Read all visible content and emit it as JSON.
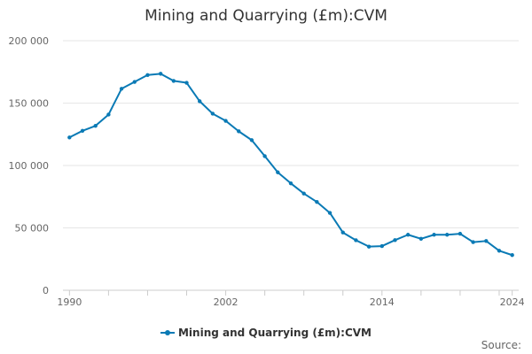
{
  "colors": {
    "line": "#0a7ab5",
    "grid": "#e6e6e6",
    "text": "#333333",
    "axis_text": "#666666"
  },
  "legend": {
    "label": "Mining and Quarrying (£m):CVM"
  },
  "source": {
    "label": "Source:"
  },
  "chart_data": {
    "type": "line",
    "title": "Mining and Quarrying (£m):CVM",
    "xlabel": "",
    "ylabel": "",
    "xlim": [
      1990,
      2024
    ],
    "ylim": [
      0,
      200000
    ],
    "yticks": [
      0,
      50000,
      100000,
      150000,
      200000
    ],
    "ytick_labels": [
      "0",
      "50 000",
      "100 000",
      "150 000",
      "200 000"
    ],
    "xtick_labels": [
      {
        "x": 1990,
        "label": "1990"
      },
      {
        "x": 2002,
        "label": "2002"
      },
      {
        "x": 2014,
        "label": "2014"
      },
      {
        "x": 2024,
        "label": "2024"
      }
    ],
    "grid": true,
    "legend_position": "bottom-center",
    "series": [
      {
        "name": "Mining and Quarrying (£m):CVM",
        "x": [
          1990,
          1991,
          1992,
          1993,
          1994,
          1995,
          1996,
          1997,
          1998,
          1999,
          2000,
          2001,
          2002,
          2003,
          2004,
          2005,
          2006,
          2007,
          2008,
          2009,
          2010,
          2011,
          2012,
          2013,
          2014,
          2015,
          2016,
          2017,
          2018,
          2019,
          2020,
          2021,
          2022,
          2023,
          2024
        ],
        "values": [
          122500,
          127800,
          131800,
          140800,
          161500,
          167000,
          172500,
          173500,
          167800,
          166300,
          151500,
          141500,
          135800,
          127400,
          120300,
          107500,
          94500,
          85700,
          77500,
          70800,
          62000,
          46300,
          40100,
          35000,
          35400,
          40200,
          44500,
          41300,
          44500,
          44500,
          45300,
          38600,
          39500,
          31700,
          28200
        ]
      }
    ]
  }
}
